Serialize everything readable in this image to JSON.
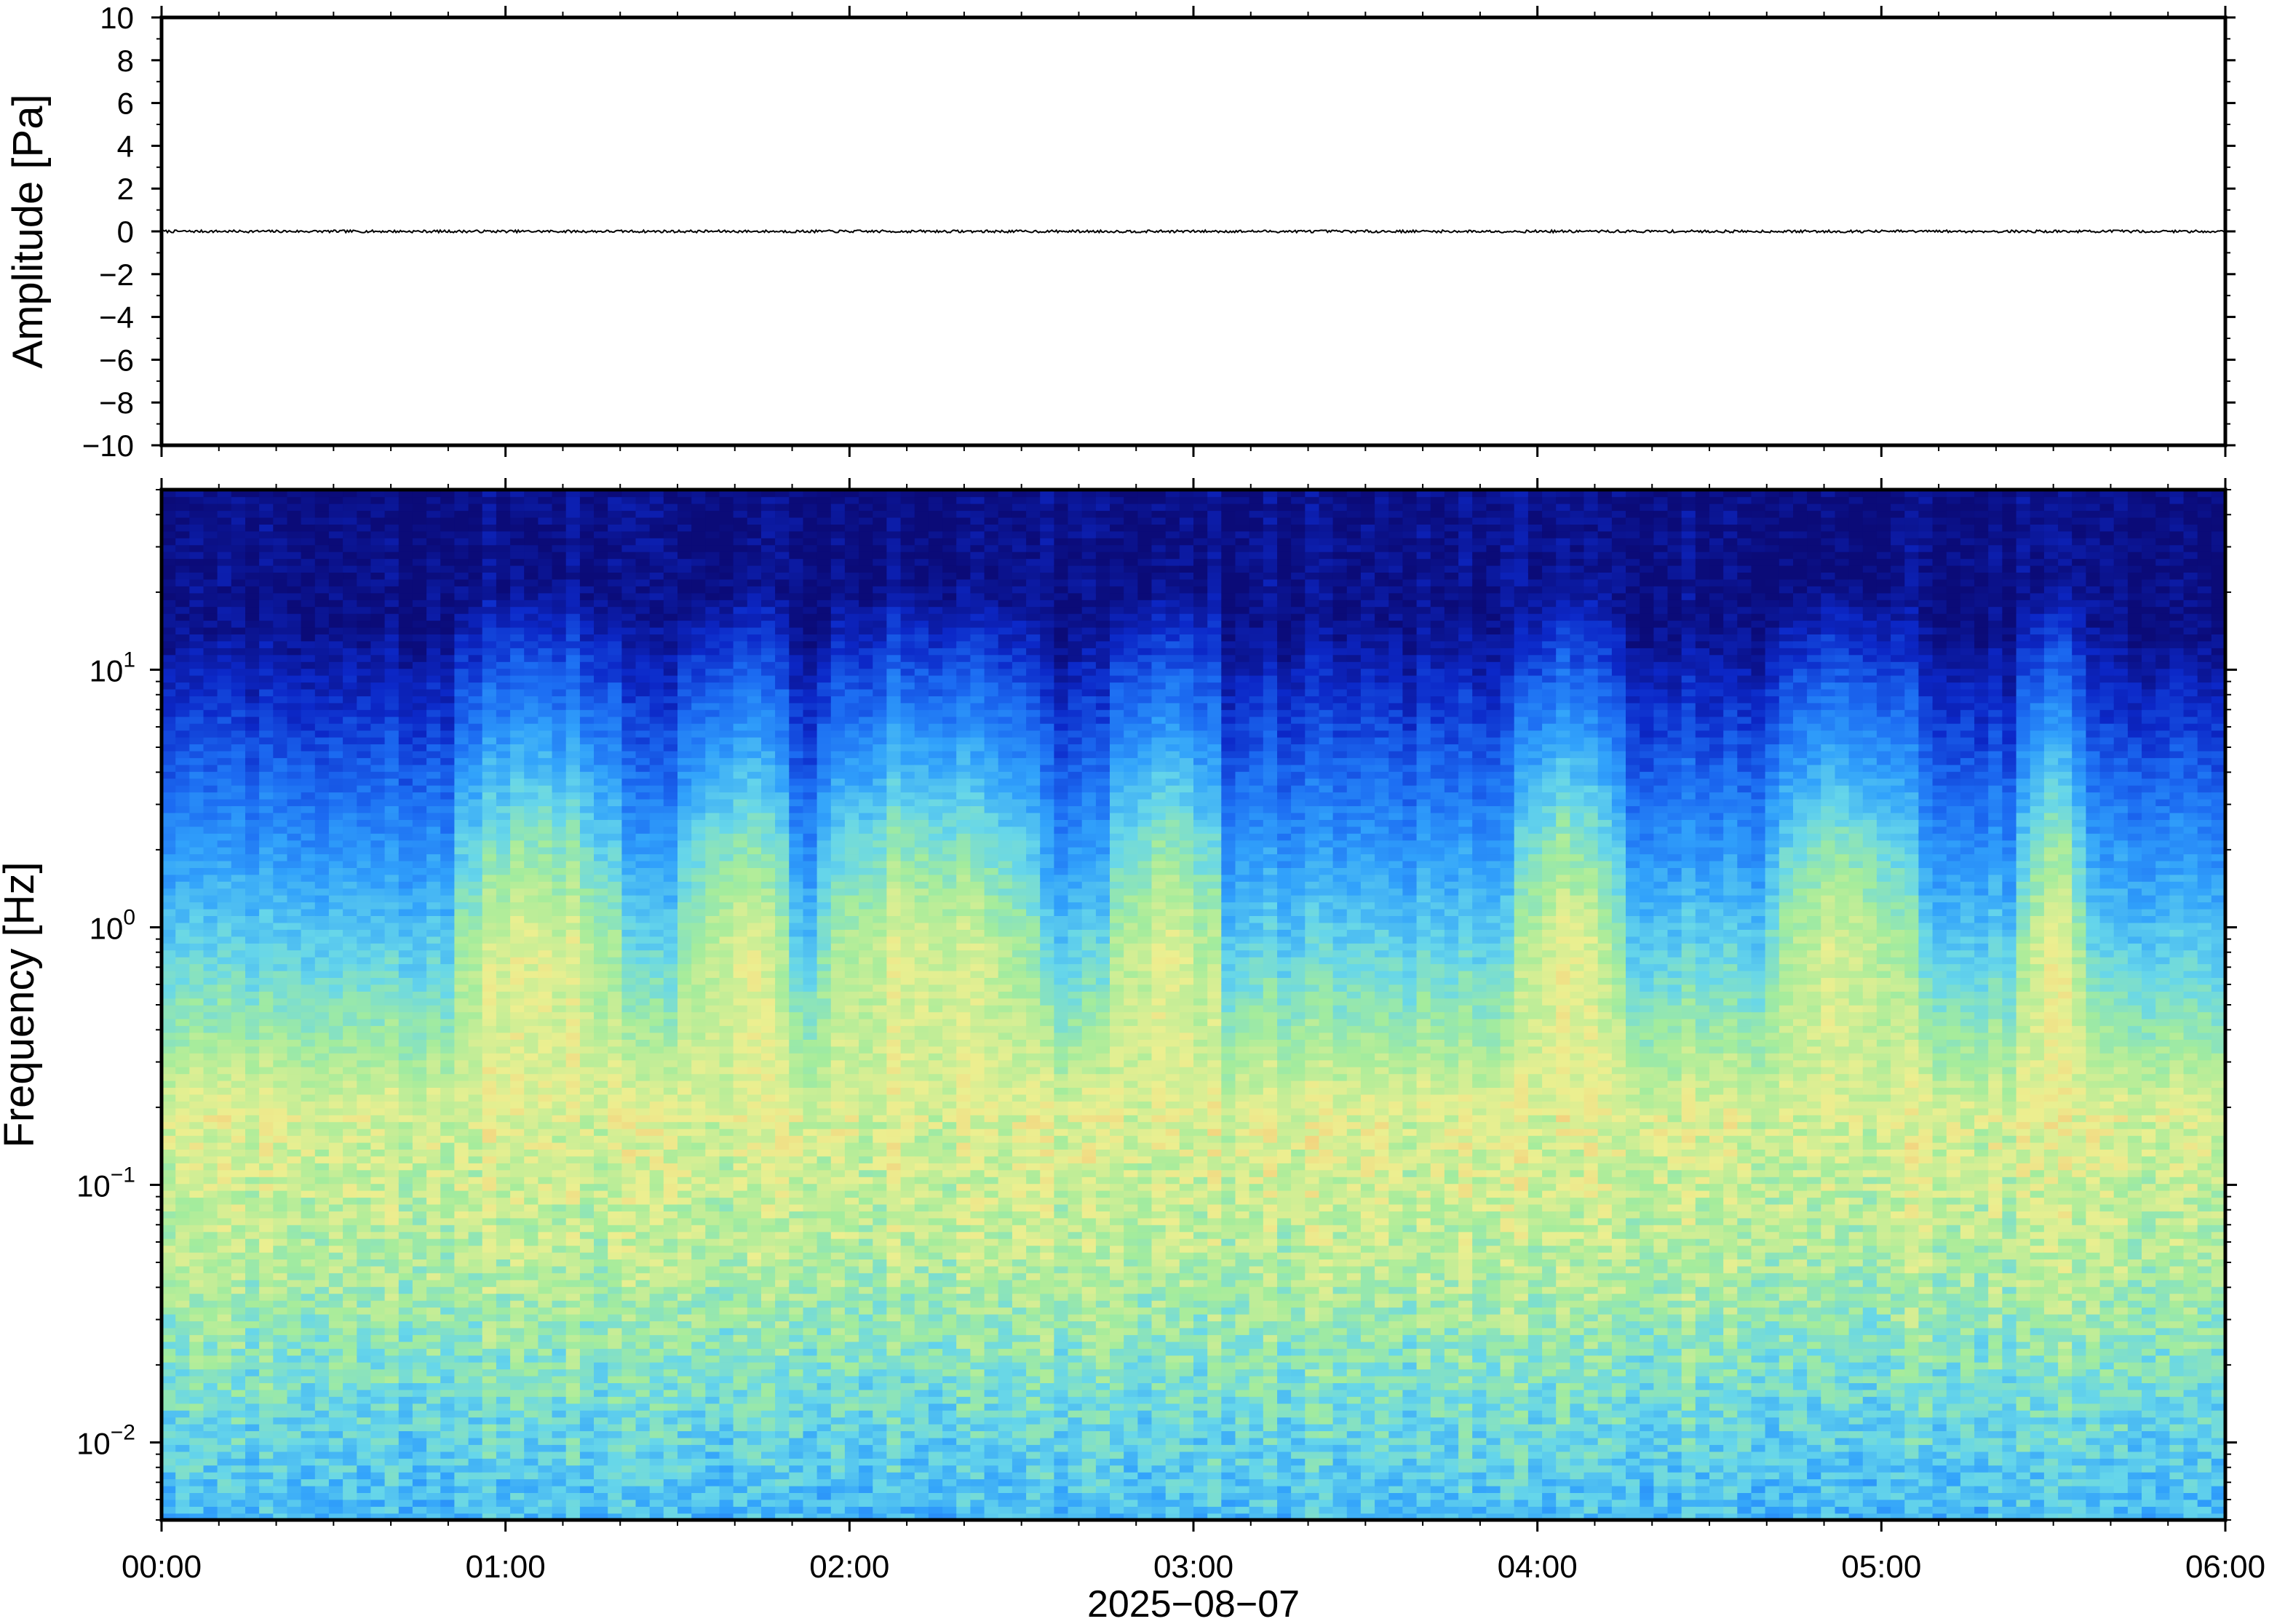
{
  "chart_data": [
    {
      "type": "line",
      "panel": "waveform",
      "ylabel": "Amplitude [Pa]",
      "ylim": [
        -10,
        10
      ],
      "yticks": [
        -10,
        -8,
        -6,
        -4,
        -2,
        0,
        2,
        4,
        6,
        8,
        10
      ],
      "ytick_labels": [
        "−10",
        "−8",
        "−6",
        "−4",
        "−2",
        "0",
        "2",
        "4",
        "6",
        "8",
        "10"
      ],
      "xlim": [
        "00:00",
        "06:00"
      ],
      "series": [
        {
          "color": "#000000",
          "approx_value": 0,
          "approx_range": [
            -0.06,
            0.06
          ]
        }
      ],
      "grid": false
    },
    {
      "type": "heatmap",
      "panel": "spectrogram",
      "ylabel": "Frequency [Hz]",
      "yscale": "log",
      "ylim": [
        0.005,
        50
      ],
      "ytick_labels": [
        {
          "value": 0.01,
          "base": "10",
          "exp": "−2"
        },
        {
          "value": 0.1,
          "base": "10",
          "exp": "−1"
        },
        {
          "value": 1,
          "base": "10",
          "exp": "0"
        },
        {
          "value": 10,
          "base": "10",
          "exp": "1"
        }
      ],
      "xlabel": "2025−08−07",
      "xlim": [
        "00:00",
        "06:00"
      ],
      "xtick_labels": [
        "00:00",
        "01:00",
        "02:00",
        "03:00",
        "04:00",
        "05:00",
        "06:00"
      ],
      "colormap": [
        "#0b0b78",
        "#0c28c8",
        "#1c6cf2",
        "#31a2fb",
        "#66d6ea",
        "#a4ec9c",
        "#ecef90",
        "#f6c274"
      ],
      "energetic_bands_hours": [
        [
          0.88,
          1.3
        ],
        [
          1.55,
          1.8
        ],
        [
          1.95,
          2.5
        ],
        [
          2.78,
          3.05
        ],
        [
          3.97,
          4.2
        ],
        [
          4.72,
          5.05
        ],
        [
          5.45,
          5.55
        ]
      ],
      "microbarom_peak_hz": 0.19,
      "grid": false
    }
  ]
}
